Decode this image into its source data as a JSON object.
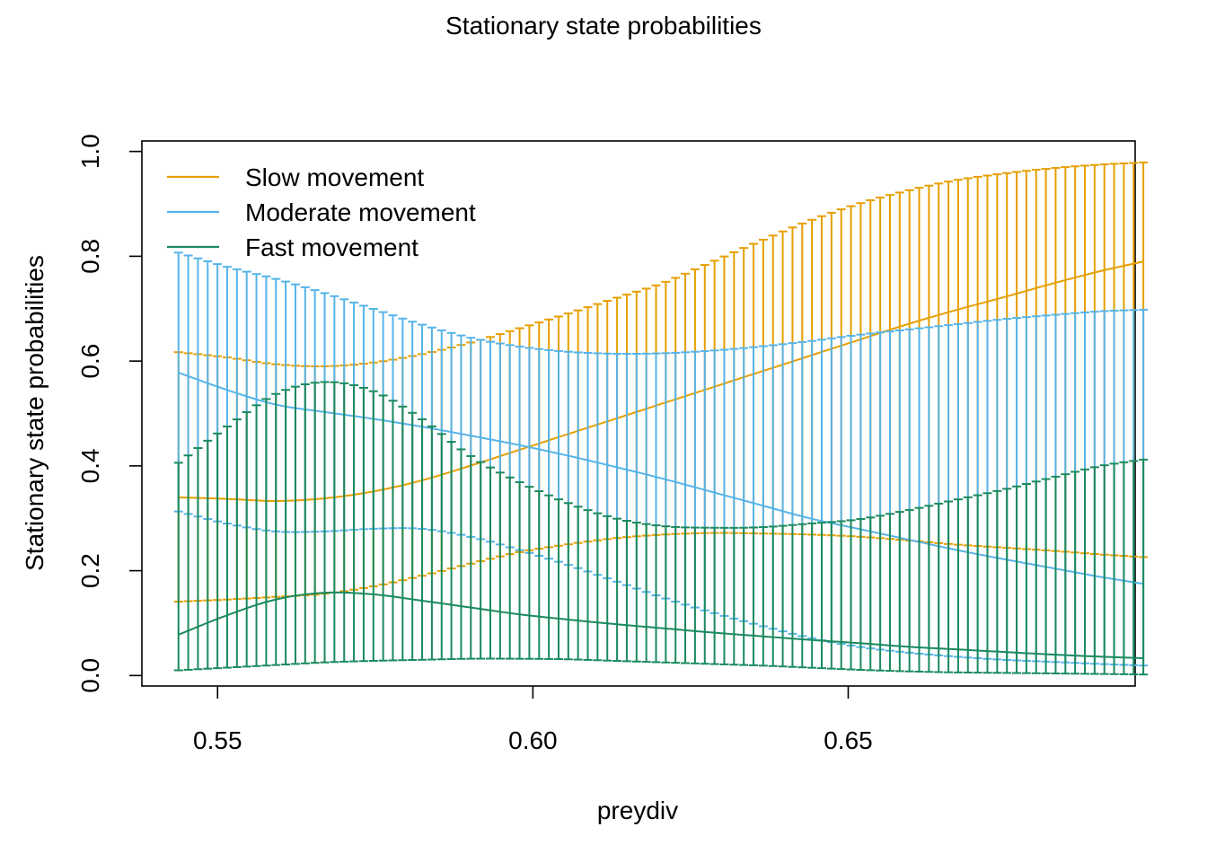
{
  "chart_data": {
    "type": "line",
    "title": "Stationary state probabilities",
    "xlabel": "preydiv",
    "ylabel": "Stationary state probabilities",
    "xlim": [
      0.538,
      0.6955
    ],
    "ylim": [
      -0.02,
      1.02
    ],
    "x_ticks": [
      0.55,
      0.6,
      0.65
    ],
    "x_tick_labels": [
      "0.55",
      "0.60",
      "0.65"
    ],
    "y_ticks": [
      0.0,
      0.2,
      0.4,
      0.6,
      0.8,
      1.0
    ],
    "y_tick_labels": [
      "0.0",
      "0.2",
      "0.4",
      "0.6",
      "0.8",
      "1.0"
    ],
    "grid": false,
    "legend_position": "top-left",
    "x": [
      0.5438,
      0.5515,
      0.5592,
      0.5669,
      0.5746,
      0.5823,
      0.59,
      0.5977,
      0.6054,
      0.6131,
      0.6208,
      0.6285,
      0.6362,
      0.6439,
      0.6516,
      0.6593,
      0.667,
      0.6747,
      0.6824,
      0.6901,
      0.6968
    ],
    "series": [
      {
        "name": "Slow movement",
        "color": "#E69F00",
        "estimate": [
          0.34,
          0.337,
          0.333,
          0.338,
          0.351,
          0.372,
          0.4,
          0.43,
          0.46,
          0.49,
          0.52,
          0.55,
          0.58,
          0.61,
          0.64,
          0.67,
          0.697,
          0.722,
          0.748,
          0.772,
          0.79
        ],
        "lower": [
          0.141,
          0.145,
          0.15,
          0.156,
          0.17,
          0.19,
          0.213,
          0.235,
          0.25,
          0.262,
          0.269,
          0.272,
          0.271,
          0.269,
          0.265,
          0.258,
          0.25,
          0.244,
          0.238,
          0.231,
          0.226
        ],
        "upper": [
          0.617,
          0.607,
          0.594,
          0.59,
          0.597,
          0.613,
          0.635,
          0.662,
          0.69,
          0.72,
          0.75,
          0.79,
          0.83,
          0.868,
          0.9,
          0.925,
          0.945,
          0.958,
          0.968,
          0.975,
          0.979
        ]
      },
      {
        "name": "Moderate movement",
        "color": "#56B4E9",
        "estimate": [
          0.578,
          0.545,
          0.517,
          0.503,
          0.49,
          0.475,
          0.458,
          0.44,
          0.42,
          0.398,
          0.375,
          0.35,
          0.325,
          0.3,
          0.28,
          0.26,
          0.24,
          0.222,
          0.205,
          0.188,
          0.175
        ],
        "lower": [
          0.313,
          0.29,
          0.275,
          0.275,
          0.28,
          0.28,
          0.265,
          0.24,
          0.212,
          0.18,
          0.148,
          0.12,
          0.095,
          0.072,
          0.055,
          0.044,
          0.036,
          0.03,
          0.026,
          0.022,
          0.019
        ],
        "upper": [
          0.807,
          0.78,
          0.757,
          0.73,
          0.7,
          0.67,
          0.645,
          0.628,
          0.618,
          0.614,
          0.615,
          0.62,
          0.628,
          0.638,
          0.65,
          0.66,
          0.67,
          0.68,
          0.688,
          0.695,
          0.698
        ]
      },
      {
        "name": "Fast movement",
        "color": "#1A8A5E",
        "estimate": [
          0.078,
          0.115,
          0.145,
          0.158,
          0.155,
          0.143,
          0.13,
          0.117,
          0.107,
          0.098,
          0.09,
          0.082,
          0.075,
          0.068,
          0.062,
          0.055,
          0.05,
          0.045,
          0.04,
          0.036,
          0.033
        ],
        "lower": [
          0.01,
          0.015,
          0.02,
          0.025,
          0.028,
          0.03,
          0.032,
          0.032,
          0.031,
          0.028,
          0.025,
          0.022,
          0.019,
          0.015,
          0.011,
          0.008,
          0.006,
          0.005,
          0.004,
          0.003,
          0.002
        ],
        "upper": [
          0.406,
          0.475,
          0.537,
          0.56,
          0.543,
          0.49,
          0.42,
          0.37,
          0.33,
          0.3,
          0.285,
          0.282,
          0.283,
          0.29,
          0.298,
          0.315,
          0.335,
          0.355,
          0.378,
          0.4,
          0.412
        ]
      }
    ]
  }
}
